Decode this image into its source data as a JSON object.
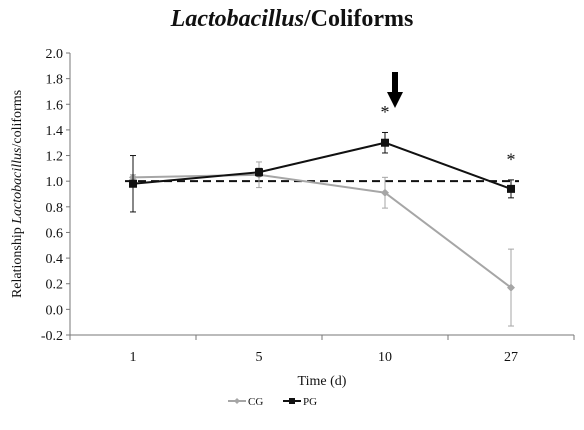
{
  "chart_data": {
    "type": "line",
    "title_italic": "Lactobacillus",
    "title_rest": "/Coliforms",
    "ylabel_prefix": "Relationship ",
    "ylabel_italic": "Lactobacillus",
    "ylabel_suffix": "/coliforms",
    "xlabel": "Time (d)",
    "categories": [
      "1",
      "5",
      "10",
      "27"
    ],
    "ylim": [
      -0.2,
      2.0
    ],
    "yticks": [
      "-0.2",
      "0.0",
      "0.2",
      "0.4",
      "0.6",
      "0.8",
      "1.0",
      "1.2",
      "1.4",
      "1.6",
      "1.8",
      "2.0"
    ],
    "reference_line": 1.0,
    "series": [
      {
        "name": "CG",
        "color": "#a6a6a6",
        "marker": "diamond",
        "values": [
          1.03,
          1.05,
          0.91,
          0.17
        ],
        "errors": [
          0.02,
          0.1,
          0.12,
          0.3
        ]
      },
      {
        "name": "PG",
        "color": "#111111",
        "marker": "square",
        "values": [
          0.98,
          1.07,
          1.3,
          0.94
        ],
        "errors": [
          0.22,
          0.03,
          0.08,
          0.07
        ]
      }
    ],
    "annotations": [
      {
        "text": "*",
        "category": "10",
        "y": 1.57
      },
      {
        "text": "*",
        "category": "27",
        "y": 1.2
      }
    ],
    "arrow": {
      "category": "10",
      "description": "down arrow marker"
    },
    "legend_position": "bottom-center"
  }
}
